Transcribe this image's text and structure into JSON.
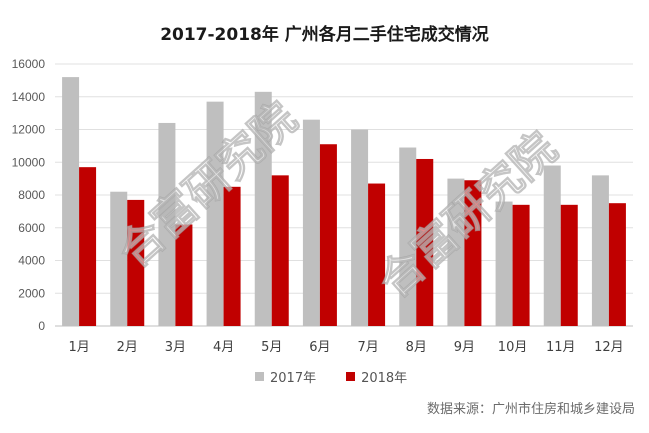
{
  "chart_data": {
    "type": "bar",
    "title": "2017-2018年 广州各月二手住宅成交情况",
    "categories": [
      "1月",
      "2月",
      "3月",
      "4月",
      "5月",
      "6月",
      "7月",
      "8月",
      "9月",
      "10月",
      "11月",
      "12月"
    ],
    "series": [
      {
        "name": "2017年",
        "color": "#bfbfbf",
        "values": [
          15200,
          8200,
          12400,
          13700,
          14300,
          12600,
          12000,
          10900,
          9000,
          7600,
          9800,
          9200
        ]
      },
      {
        "name": "2018年",
        "color": "#c00000",
        "values": [
          9700,
          7700,
          6200,
          8500,
          9200,
          11100,
          8700,
          10200,
          8900,
          7400,
          7400,
          7500
        ]
      }
    ],
    "ylim": [
      0,
      16000
    ],
    "yticks": [
      0,
      2000,
      4000,
      6000,
      8000,
      10000,
      12000,
      14000,
      16000
    ],
    "grid": true,
    "legend": "bottom"
  },
  "source_text": "数据来源：广州市住房和城乡建设局",
  "watermarks": [
    "合富研究院",
    "合富研究院"
  ]
}
